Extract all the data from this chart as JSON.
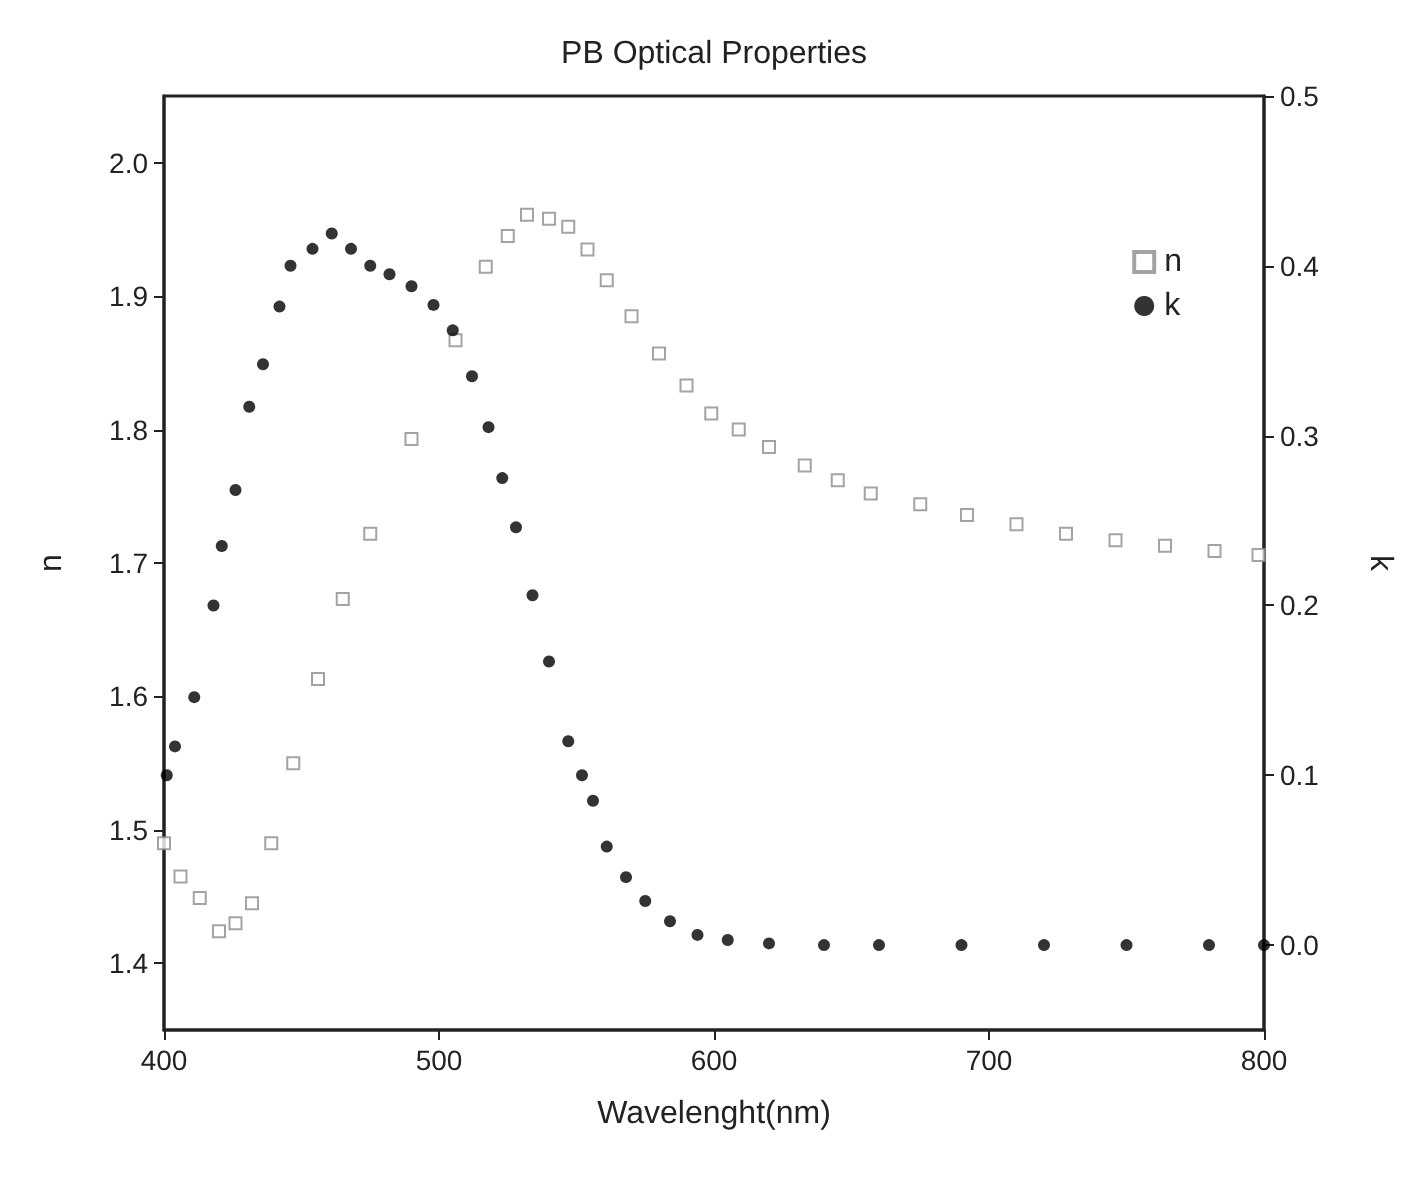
{
  "chart_data": {
    "type": "scatter",
    "title": "PB Optical Properties",
    "xlabel": "Wavelenght(nm)",
    "ylabel": "n",
    "y2label": "k",
    "xlim": [
      400,
      800
    ],
    "xticks": [
      400,
      500,
      600,
      700,
      800
    ],
    "ylim": [
      1.35,
      2.05
    ],
    "yticks": [
      1.4,
      1.5,
      1.6,
      1.7,
      1.8,
      1.9,
      {
        "value": 2.0,
        "label": "2.0"
      }
    ],
    "y2lim": [
      -0.05,
      0.5
    ],
    "y2ticks": [
      {
        "value": 0,
        "label": "0.0"
      },
      0.1,
      0.2,
      0.3,
      0.4,
      0.5
    ],
    "grid": false,
    "legend": "top right",
    "series": [
      {
        "name": "n",
        "color": "#8c8c8c",
        "marker": "square",
        "x": [
          400,
          406,
          413,
          420,
          426,
          432,
          439,
          447,
          456,
          465,
          475,
          490,
          506,
          517,
          525,
          532,
          540,
          547,
          554,
          561,
          570,
          580,
          590,
          599,
          609,
          620,
          633,
          645,
          657,
          675,
          692,
          710,
          728,
          746,
          764,
          782,
          798
        ],
        "values": [
          1.49,
          1.465,
          1.449,
          1.424,
          1.43,
          1.445,
          1.49,
          1.55,
          1.613,
          1.673,
          1.722,
          1.793,
          1.867,
          1.922,
          1.945,
          1.961,
          1.958,
          1.952,
          1.935,
          1.912,
          1.885,
          1.857,
          1.833,
          1.812,
          1.8,
          1.787,
          1.773,
          1.762,
          1.752,
          1.744,
          1.736,
          1.729,
          1.722,
          1.717,
          1.713,
          1.709,
          1.706
        ]
      },
      {
        "name": "k",
        "color": "#000000",
        "marker": "circle",
        "axis": "y2",
        "x": [
          401,
          404,
          411,
          418,
          421,
          426,
          431,
          436,
          442,
          446,
          454,
          461,
          468,
          475,
          482,
          490,
          498,
          505,
          512,
          518,
          523,
          528,
          534,
          540,
          547,
          552,
          556,
          561,
          568,
          575,
          584,
          594,
          605,
          620,
          640,
          660,
          690,
          720,
          750,
          780,
          800
        ],
        "values": [
          0.1,
          0.117,
          0.146,
          0.2,
          0.235,
          0.268,
          0.317,
          0.342,
          0.376,
          0.4,
          0.41,
          0.419,
          0.41,
          0.4,
          0.395,
          0.388,
          0.377,
          0.362,
          0.335,
          0.305,
          0.275,
          0.246,
          0.206,
          0.167,
          0.12,
          0.1,
          0.085,
          0.058,
          0.04,
          0.026,
          0.014,
          0.006,
          0.003,
          0.001,
          0,
          0,
          0,
          0,
          0,
          0,
          0
        ]
      }
    ]
  }
}
